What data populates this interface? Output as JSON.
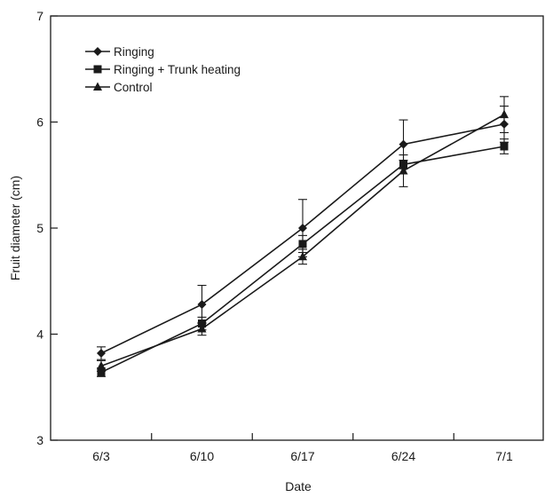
{
  "chart_data": {
    "type": "line",
    "title": "",
    "xlabel": "Date",
    "ylabel": "Fruit diameter (cm)",
    "categories": [
      "6/3",
      "6/10",
      "6/17",
      "6/24",
      "7/1"
    ],
    "ylim": [
      3,
      7
    ],
    "yticks": [
      "3",
      "4",
      "5",
      "6",
      "7"
    ],
    "grid": false,
    "legend_position": "top-left",
    "series": [
      {
        "name": "Ringing",
        "marker": "diamond",
        "values": [
          3.82,
          4.28,
          5.0,
          5.79,
          5.98
        ],
        "error": [
          0.06,
          0.18,
          0.27,
          0.23,
          0.17
        ]
      },
      {
        "name": "Ringing + Trunk heating",
        "marker": "square",
        "values": [
          3.64,
          4.1,
          4.85,
          5.6,
          5.77
        ],
        "error": [
          0.04,
          0.06,
          0.08,
          0.04,
          0.07
        ]
      },
      {
        "name": "Control",
        "marker": "triangle",
        "values": [
          3.7,
          4.05,
          4.73,
          5.54,
          6.07
        ],
        "error": [
          0.05,
          0.06,
          0.07,
          0.15,
          0.17
        ]
      }
    ],
    "colors": {
      "line": "#1a1a1a",
      "background": "#ffffff"
    }
  }
}
